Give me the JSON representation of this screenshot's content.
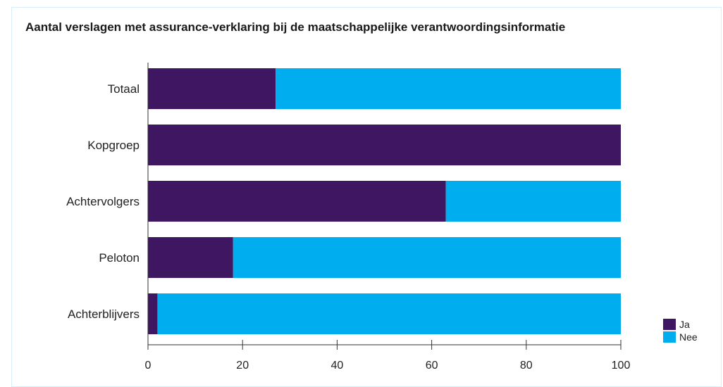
{
  "chart_data": {
    "type": "bar",
    "orientation": "horizontal",
    "stacked": true,
    "title": "Aantal verslagen met assurance-verklaring bij de maatschappelijke verantwoordingsinformatie",
    "categories": [
      "Totaal",
      "Kopgroep",
      "Achtervolgers",
      "Peloton",
      "Achterblijvers"
    ],
    "series": [
      {
        "name": "Ja",
        "color": "#3e1661",
        "values": [
          27,
          100,
          63,
          18,
          2
        ]
      },
      {
        "name": "Nee",
        "color": "#00aeef",
        "values": [
          73,
          0,
          37,
          82,
          98
        ]
      }
    ],
    "xlim": [
      0,
      100
    ],
    "xticks": [
      "0",
      "20",
      "40",
      "60",
      "80",
      "100"
    ],
    "grid": false,
    "legend_position": "bottom-right"
  }
}
